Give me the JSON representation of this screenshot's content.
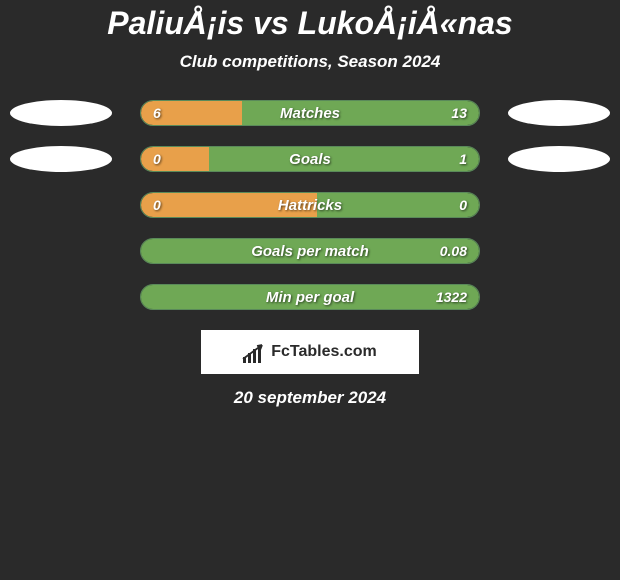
{
  "title": "PaliuÅ¡is vs LukoÅ¡iÅ«nas",
  "subtitle": "Club competitions, Season 2024",
  "date": "20 september 2024",
  "logo_text": "FcTables.com",
  "colors": {
    "background": "#2a2a2a",
    "bar_left": "#e8a04a",
    "bar_right": "#6fa855",
    "bar_border": "#5a8a5a",
    "text": "#ffffff",
    "logo_bg": "#ffffff",
    "logo_fg": "#2a2a2a"
  },
  "stats": [
    {
      "label": "Matches",
      "left_value": "6",
      "right_value": "13",
      "left_pct": 30,
      "right_pct": 70,
      "show_ellipses": true
    },
    {
      "label": "Goals",
      "left_value": "0",
      "right_value": "1",
      "left_pct": 20,
      "right_pct": 80,
      "show_ellipses": true
    },
    {
      "label": "Hattricks",
      "left_value": "0",
      "right_value": "0",
      "left_pct": 52,
      "right_pct": 48,
      "show_ellipses": false
    },
    {
      "label": "Goals per match",
      "left_value": "",
      "right_value": "0.08",
      "left_pct": 0,
      "right_pct": 100,
      "show_ellipses": false
    },
    {
      "label": "Min per goal",
      "left_value": "",
      "right_value": "1322",
      "left_pct": 0,
      "right_pct": 100,
      "show_ellipses": false
    }
  ]
}
